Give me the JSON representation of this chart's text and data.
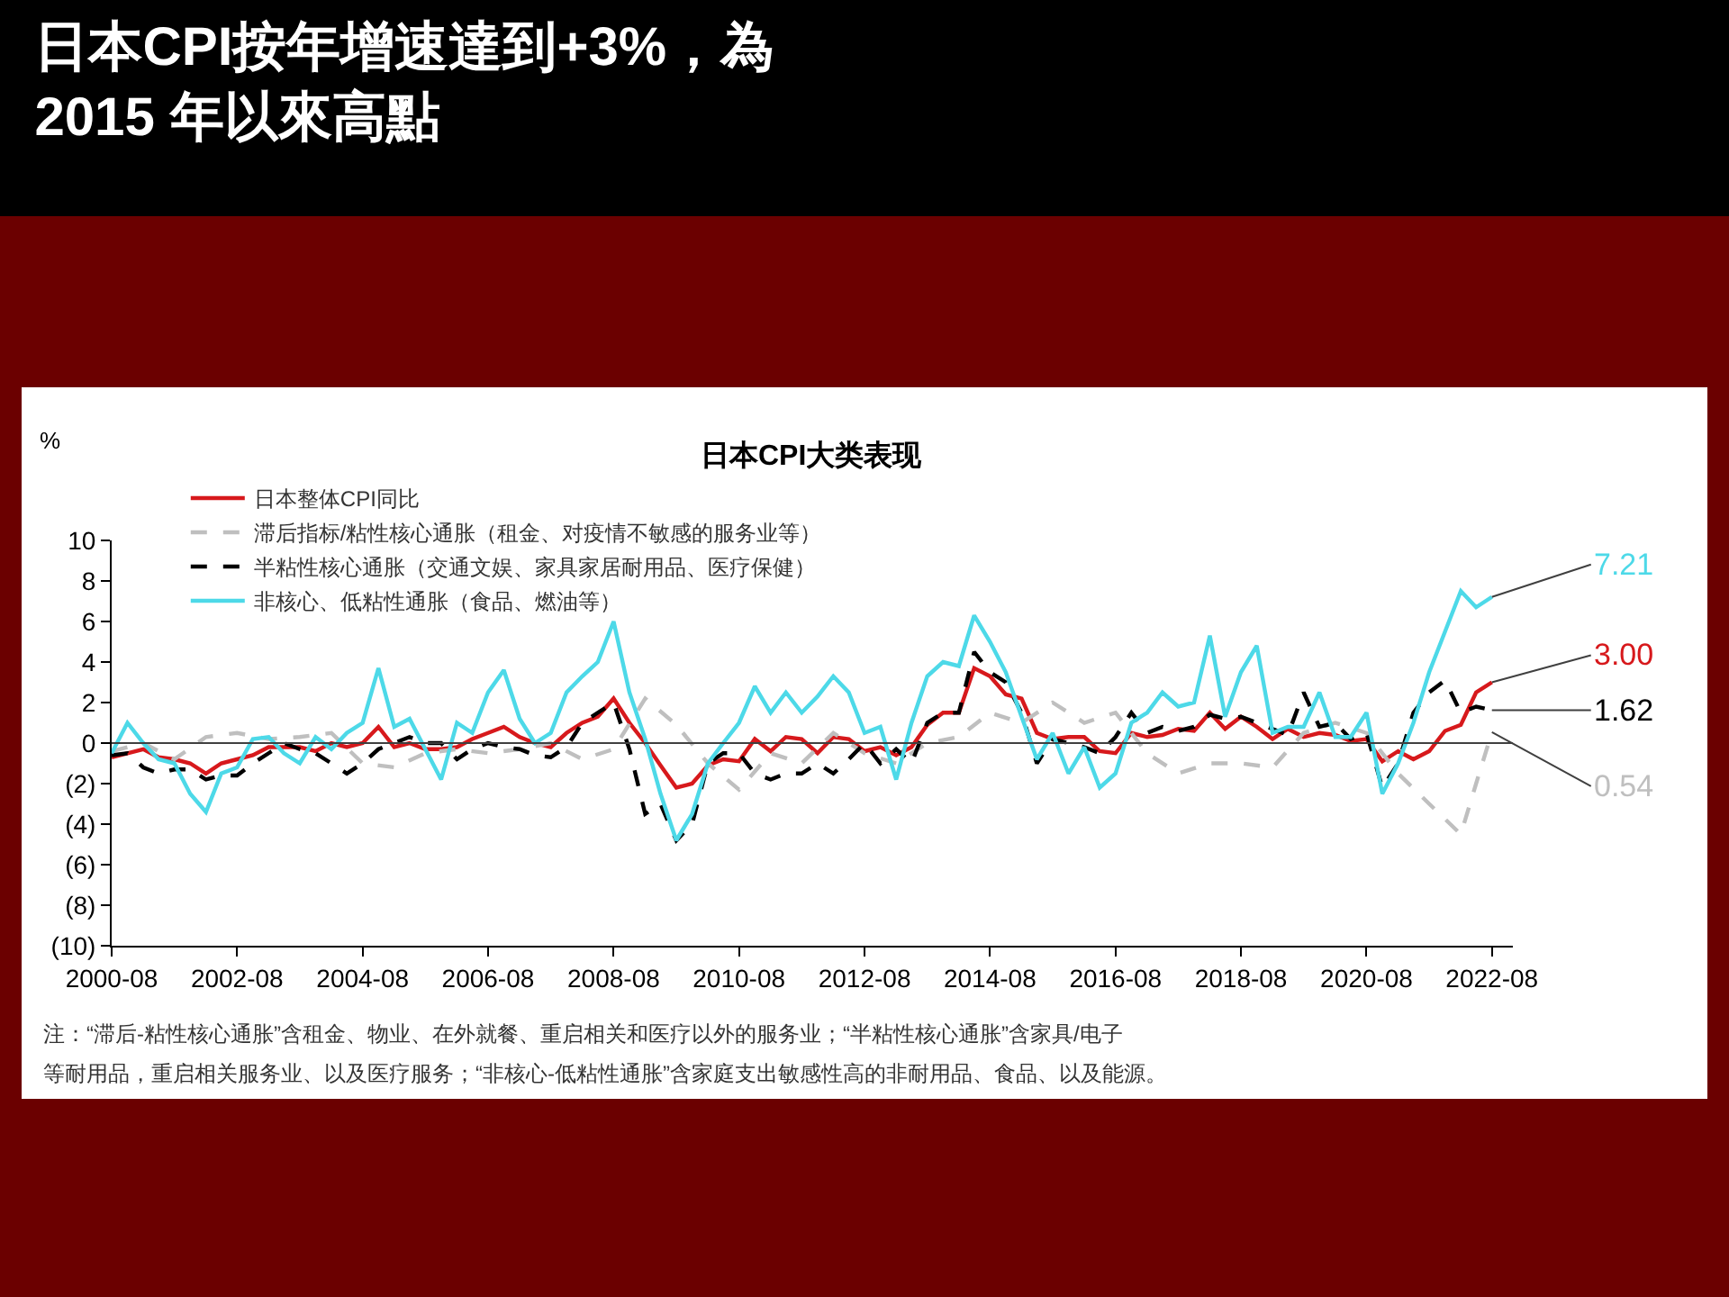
{
  "chart_data": {
    "type": "line",
    "title": "日本CPI按年增速達到+3%，為\n2015 年以來高點",
    "subtitle": "日本CPI大类表现",
    "ylabel": "%",
    "x": [
      "2000-08",
      "2000-11",
      "2001-02",
      "2001-05",
      "2001-08",
      "2001-11",
      "2002-02",
      "2002-05",
      "2002-08",
      "2002-11",
      "2003-02",
      "2003-05",
      "2003-08",
      "2003-11",
      "2004-02",
      "2004-05",
      "2004-08",
      "2004-11",
      "2005-02",
      "2005-05",
      "2005-08",
      "2005-11",
      "2006-02",
      "2006-05",
      "2006-08",
      "2006-11",
      "2007-02",
      "2007-05",
      "2007-08",
      "2007-11",
      "2008-02",
      "2008-05",
      "2008-08",
      "2008-11",
      "2009-02",
      "2009-05",
      "2009-08",
      "2009-11",
      "2010-02",
      "2010-05",
      "2010-08",
      "2010-11",
      "2011-02",
      "2011-05",
      "2011-08",
      "2011-11",
      "2012-02",
      "2012-05",
      "2012-08",
      "2012-11",
      "2013-02",
      "2013-05",
      "2013-08",
      "2013-11",
      "2014-02",
      "2014-05",
      "2014-08",
      "2014-11",
      "2015-02",
      "2015-05",
      "2015-08",
      "2015-11",
      "2016-02",
      "2016-05",
      "2016-08",
      "2016-11",
      "2017-02",
      "2017-05",
      "2017-08",
      "2017-11",
      "2018-02",
      "2018-05",
      "2018-08",
      "2018-11",
      "2019-02",
      "2019-05",
      "2019-08",
      "2019-11",
      "2020-02",
      "2020-05",
      "2020-08",
      "2020-11",
      "2021-02",
      "2021-05",
      "2021-08",
      "2021-11",
      "2022-02",
      "2022-05",
      "2022-08"
    ],
    "series": [
      {
        "name": "日本整体CPI同比",
        "color": "#d7191c",
        "line_style": "solid",
        "values": [
          -0.7,
          -0.5,
          -0.3,
          -0.7,
          -0.8,
          -1.0,
          -1.5,
          -1.0,
          -0.8,
          -0.6,
          -0.2,
          -0.2,
          -0.2,
          -0.4,
          0.0,
          -0.2,
          0.0,
          0.8,
          -0.2,
          0.0,
          -0.3,
          -0.3,
          -0.2,
          0.2,
          0.5,
          0.8,
          0.3,
          0.0,
          -0.2,
          0.5,
          1.0,
          1.3,
          2.2,
          1.0,
          0.0,
          -1.1,
          -2.2,
          -2.0,
          -1.1,
          -0.8,
          -0.9,
          0.2,
          -0.4,
          0.3,
          0.2,
          -0.5,
          0.3,
          0.2,
          -0.4,
          -0.2,
          -0.6,
          -0.2,
          0.9,
          1.5,
          1.5,
          3.7,
          3.3,
          2.4,
          2.2,
          0.5,
          0.2,
          0.3,
          0.3,
          -0.4,
          -0.5,
          0.5,
          0.3,
          0.4,
          0.7,
          0.6,
          1.5,
          0.7,
          1.3,
          0.8,
          0.2,
          0.7,
          0.3,
          0.5,
          0.4,
          0.1,
          0.2,
          -0.9,
          -0.4,
          -0.8,
          -0.4,
          0.6,
          0.9,
          2.5,
          3.0
        ]
      },
      {
        "name": "滞后指标/粘性核心通胀（租金、对疫情不敏感的服务业等）",
        "color": "#bfbfbf",
        "line_style": "dashed",
        "x": [
          "2000-08",
          "2001-02",
          "2001-08",
          "2002-02",
          "2002-08",
          "2003-02",
          "2003-08",
          "2004-02",
          "2004-08",
          "2005-02",
          "2005-08",
          "2006-02",
          "2006-08",
          "2007-02",
          "2007-08",
          "2008-02",
          "2008-08",
          "2009-02",
          "2009-08",
          "2010-02",
          "2010-08",
          "2011-02",
          "2011-08",
          "2012-02",
          "2012-08",
          "2013-02",
          "2013-08",
          "2014-02",
          "2014-08",
          "2015-02",
          "2015-08",
          "2016-02",
          "2016-08",
          "2017-02",
          "2017-08",
          "2018-02",
          "2018-08",
          "2019-02",
          "2019-08",
          "2020-02",
          "2020-08",
          "2021-02",
          "2021-08",
          "2022-02",
          "2022-05",
          "2022-08"
        ],
        "values": [
          -0.4,
          0.0,
          -0.8,
          0.3,
          0.5,
          0.2,
          0.3,
          0.5,
          -1.0,
          -1.2,
          -0.5,
          -0.3,
          -0.5,
          -0.3,
          0.0,
          -0.8,
          -0.3,
          2.2,
          0.9,
          -1.0,
          -2.3,
          -0.5,
          -1.0,
          0.5,
          -0.5,
          -1.0,
          0.0,
          0.3,
          1.5,
          1.0,
          2.0,
          1.0,
          1.5,
          -0.5,
          -1.5,
          -1.0,
          -1.0,
          -1.2,
          0.5,
          1.0,
          0.5,
          -1.5,
          -3.0,
          -4.5,
          -2.0,
          0.54
        ]
      },
      {
        "name": "半粘性核心通胀（交通文娱、家具家居耐用品、医疗保健）",
        "color": "#000000",
        "line_style": "dashed",
        "values": [
          -0.6,
          -0.5,
          -1.2,
          -1.5,
          -1.3,
          -1.3,
          -1.8,
          -1.6,
          -1.6,
          -1.0,
          -0.5,
          0.0,
          -0.3,
          -0.5,
          -1.0,
          -1.5,
          -1.0,
          -0.3,
          0.0,
          0.3,
          0.0,
          0.0,
          -0.8,
          -0.3,
          0.0,
          -0.2,
          -0.3,
          -0.6,
          -0.7,
          -0.2,
          1.0,
          1.5,
          2.0,
          -0.3,
          -3.5,
          -3.0,
          -4.8,
          -4.0,
          -1.0,
          -0.5,
          -0.5,
          -1.5,
          -1.8,
          -1.5,
          -1.5,
          -1.0,
          -1.5,
          -0.8,
          0.0,
          -1.0,
          -0.3,
          -1.0,
          1.0,
          1.5,
          1.5,
          4.5,
          3.5,
          3.0,
          1.5,
          -1.0,
          0.2,
          0.0,
          -0.2,
          -0.5,
          0.3,
          1.5,
          0.5,
          0.8,
          0.6,
          0.8,
          1.4,
          1.2,
          1.3,
          1.0,
          0.7,
          0.4,
          2.5,
          0.8,
          1.0,
          0.2,
          0.5,
          -2.2,
          -1.0,
          1.5,
          2.5,
          3.1,
          1.5,
          1.8,
          1.62
        ]
      },
      {
        "name": "非核心、低粘性通胀（食品、燃油等）",
        "color": "#4dd9e8",
        "line_style": "solid",
        "values": [
          -0.5,
          1.0,
          0.0,
          -0.8,
          -1.0,
          -2.5,
          -3.4,
          -1.5,
          -1.2,
          0.2,
          0.3,
          -0.5,
          -1.0,
          0.3,
          -0.3,
          0.5,
          1.0,
          3.7,
          0.8,
          1.2,
          -0.3,
          -1.8,
          1.0,
          0.5,
          2.5,
          3.6,
          1.2,
          0.0,
          0.5,
          2.5,
          3.3,
          4.0,
          6.0,
          2.5,
          0.2,
          -2.5,
          -4.8,
          -3.5,
          -1.0,
          0.0,
          1.0,
          2.8,
          1.5,
          2.5,
          1.5,
          2.3,
          3.3,
          2.5,
          0.5,
          0.8,
          -1.8,
          1.0,
          3.3,
          4.0,
          3.8,
          6.3,
          5.0,
          3.5,
          1.3,
          -0.8,
          0.5,
          -1.5,
          -0.2,
          -2.2,
          -1.5,
          1.0,
          1.5,
          2.5,
          1.8,
          2.0,
          5.3,
          1.3,
          3.5,
          4.8,
          0.5,
          0.8,
          0.8,
          2.5,
          0.3,
          0.3,
          1.5,
          -2.5,
          -1.0,
          1.0,
          3.5,
          5.5,
          7.5,
          6.7,
          7.21
        ]
      }
    ],
    "annotations": [
      {
        "text": "3.00",
        "x": "2022-08",
        "y": 3.0
      },
      {
        "text": "0.54",
        "x": "2022-08",
        "y": 0.54
      },
      {
        "text": "1.62",
        "x": "2022-08",
        "y": 1.62
      },
      {
        "text": "7.21",
        "x": "2022-08",
        "y": 7.21
      },
      "注：“滞后-粘性核心通胀”含租金、物业、在外就餐、重启相关和医疗以外的服务业；“半粘性核心通胀”含家具/电子",
      "等耐用品，重启相关服务业、以及医疗服务；“非核心-低粘性通胀”含家庭支出敏感性高的非耐用品、食品、以及能源。"
    ],
    "xlim": [
      "2000-08",
      "2022-12"
    ],
    "xticks": [
      "2000-08",
      "2002-08",
      "2004-08",
      "2006-08",
      "2008-08",
      "2010-08",
      "2012-08",
      "2014-08",
      "2016-08",
      "2018-08",
      "2020-08",
      "2022-08"
    ],
    "ylim": [
      -10,
      10
    ],
    "yticks": [
      10,
      8,
      6,
      4,
      2,
      0,
      {
        "value": -2,
        "label": "(2)"
      },
      {
        "value": -4,
        "label": "(4)"
      },
      {
        "value": -6,
        "label": "(6)"
      },
      {
        "value": -8,
        "label": "(8)"
      },
      {
        "value": -10,
        "label": "(10)"
      }
    ],
    "ref_lines": [
      {
        "axis": "y",
        "value": 0,
        "color": "#404040"
      }
    ],
    "legend": "top",
    "marker": "none"
  }
}
